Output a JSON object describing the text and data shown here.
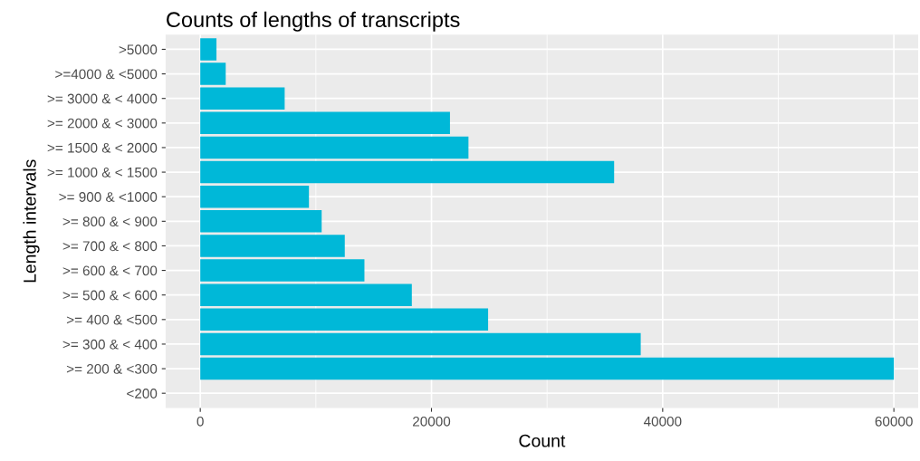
{
  "chart_data": {
    "type": "bar",
    "orientation": "horizontal",
    "title": "Counts of lengths of transcripts",
    "xlabel": "Count",
    "ylabel": "Length intervals",
    "categories": [
      ">5000",
      ">=4000 & <5000",
      ">= 3000 & < 4000",
      ">= 2000 & < 3000",
      ">= 1500 & < 2000",
      ">= 1000 & < 1500",
      ">= 900 & <1000",
      ">= 800 & < 900",
      ">= 700 & < 800",
      ">= 600 & < 700",
      ">= 500 & < 600",
      ">= 400 & <500",
      ">= 300 & < 400",
      ">= 200 & <300",
      "<200"
    ],
    "values": [
      1400,
      2200,
      7300,
      21600,
      23200,
      35800,
      9400,
      10500,
      12500,
      14200,
      18300,
      24900,
      38100,
      60000,
      0
    ],
    "color": "#00b8d8",
    "xlim": [
      -3000,
      62100
    ],
    "xticks": [
      0,
      20000,
      40000,
      60000
    ],
    "grid": true
  }
}
